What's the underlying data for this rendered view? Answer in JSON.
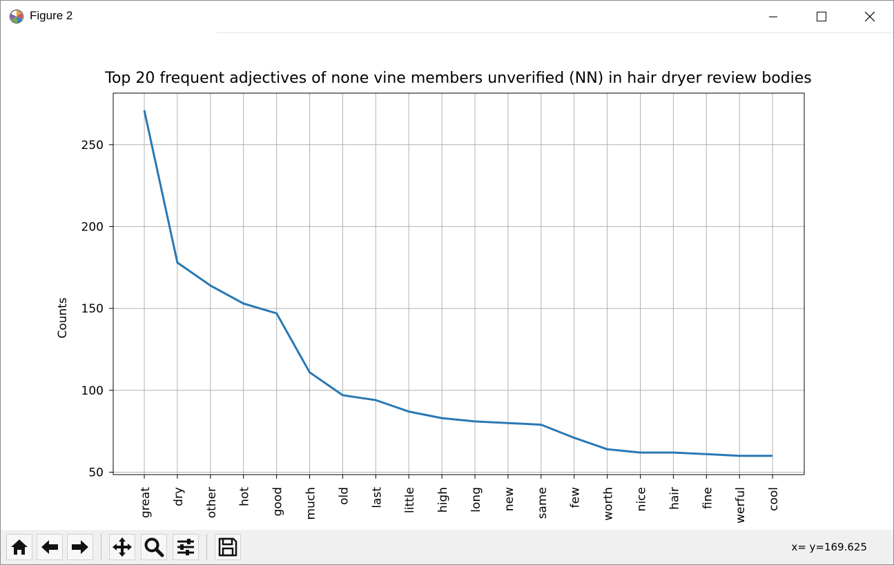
{
  "window": {
    "title": "Figure 2"
  },
  "toolbar": {
    "buttons": [
      {
        "name": "home-icon"
      },
      {
        "name": "back-icon"
      },
      {
        "name": "forward-icon"
      },
      {
        "name": "pan-icon"
      },
      {
        "name": "zoom-icon"
      },
      {
        "name": "configure-subplots-icon"
      },
      {
        "name": "save-icon"
      }
    ],
    "coords": "x= y=169.625"
  },
  "chart_data": {
    "type": "line",
    "title": "Top 20 frequent adjectives of none vine members unverified (NN) in hair dryer review bodies",
    "xlabel": "",
    "ylabel": "Counts",
    "categories": [
      "great",
      "dry",
      "other",
      "hot",
      "good",
      "much",
      "old",
      "last",
      "little",
      "high",
      "long",
      "new",
      "same",
      "few",
      "worth",
      "nice",
      "hair",
      "fine",
      "werful",
      "cool"
    ],
    "values": [
      271,
      178,
      164,
      153,
      147,
      111,
      97,
      94,
      87,
      83,
      81,
      80,
      79,
      71,
      64,
      62,
      62,
      61,
      60,
      60
    ],
    "ylim": [
      48.5,
      281.5
    ],
    "yticks": [
      50,
      100,
      150,
      200,
      250
    ],
    "grid": true,
    "line_color": "#2878b5"
  }
}
